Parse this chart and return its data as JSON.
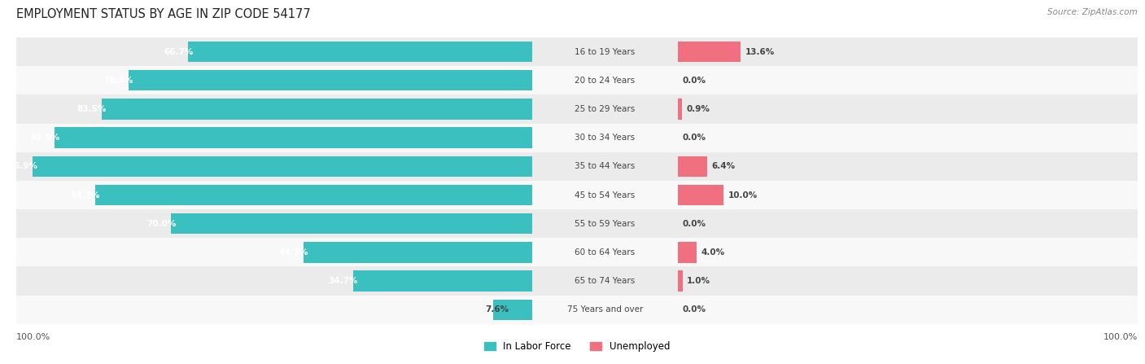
{
  "title": "EMPLOYMENT STATUS BY AGE IN ZIP CODE 54177",
  "source": "Source: ZipAtlas.com",
  "categories": [
    "16 to 19 Years",
    "20 to 24 Years",
    "25 to 29 Years",
    "30 to 34 Years",
    "35 to 44 Years",
    "45 to 54 Years",
    "55 to 59 Years",
    "60 to 64 Years",
    "65 to 74 Years",
    "75 Years and over"
  ],
  "labor_force": [
    66.7,
    78.3,
    83.5,
    92.6,
    96.9,
    84.7,
    70.0,
    44.3,
    34.7,
    7.6
  ],
  "unemployed": [
    13.6,
    0.0,
    0.9,
    0.0,
    6.4,
    10.0,
    0.0,
    4.0,
    1.0,
    0.0
  ],
  "labor_color": "#3bbfbf",
  "unemployed_color": "#f07080",
  "row_colors": [
    "#ebebeb",
    "#f8f8f8"
  ],
  "title_fontsize": 10.5,
  "source_fontsize": 7.5,
  "bar_fontsize": 7.5,
  "cat_fontsize": 7.5,
  "legend_fontsize": 8.5,
  "axis_max": 100.0,
  "white": "#ffffff",
  "dark_text": "#444444"
}
